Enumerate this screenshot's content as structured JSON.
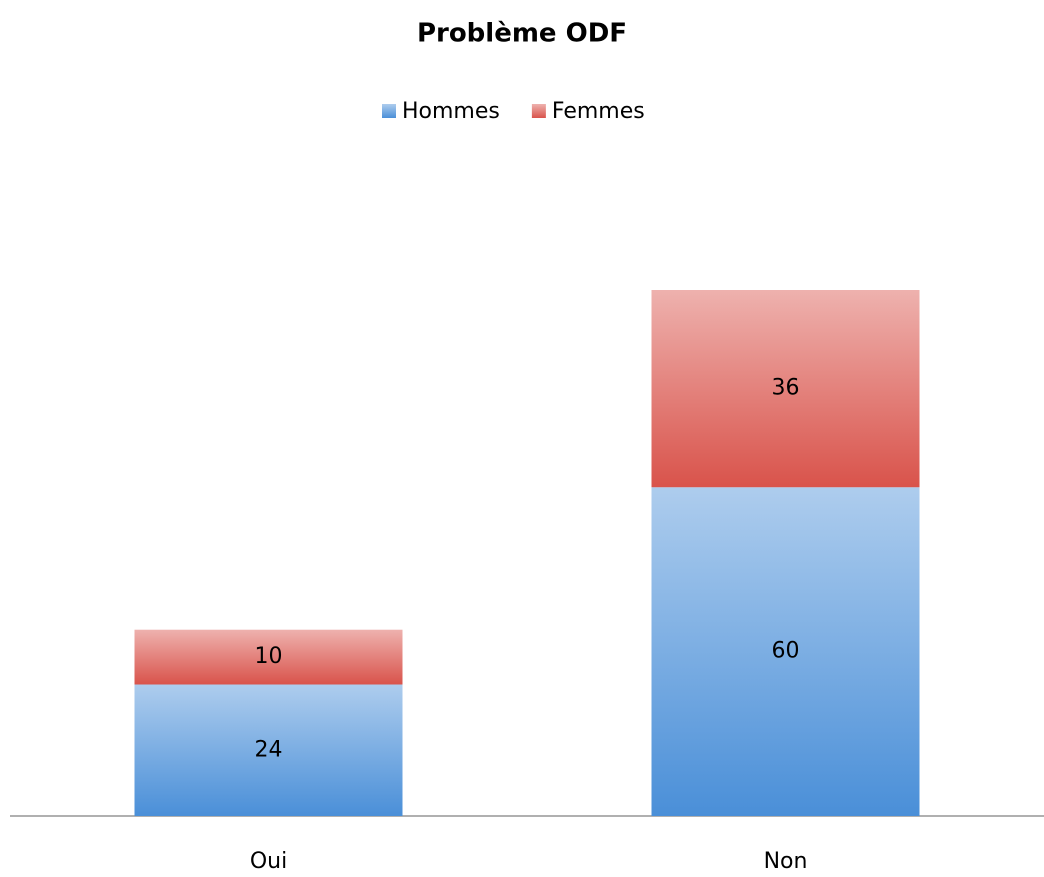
{
  "chart_data": {
    "type": "stacked_bar",
    "title": "Problème ODF",
    "categories": [
      "Oui",
      "Non"
    ],
    "series": [
      {
        "name": "Hommes",
        "color": "#4a8fd8",
        "values": [
          24,
          60
        ]
      },
      {
        "name": "Femmes",
        "color": "#d9534b",
        "values": [
          10,
          36
        ]
      }
    ],
    "legend": "top",
    "grid": false
  }
}
